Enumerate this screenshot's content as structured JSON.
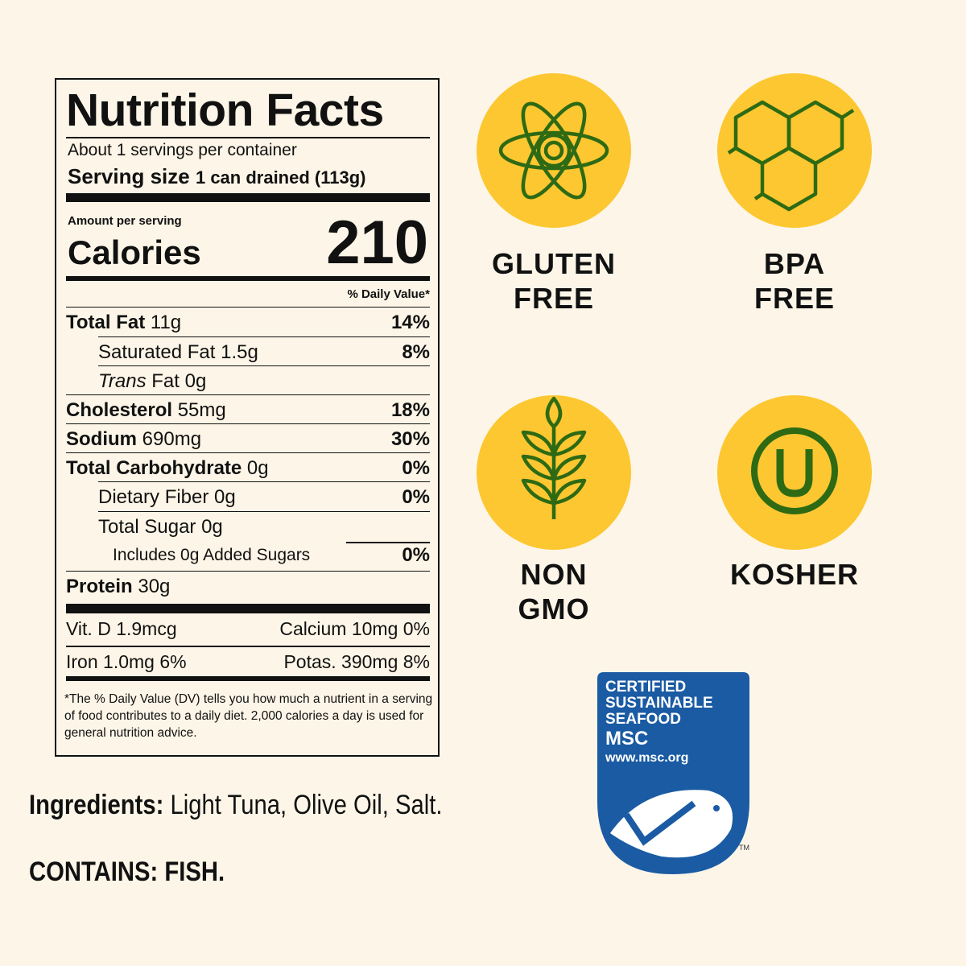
{
  "nutrition_facts": {
    "title": "Nutrition Facts",
    "servings": "About 1 servings per container",
    "serving_size_label": "Serving size",
    "serving_size": "1 can drained (113g)",
    "amount_per_serving": "Amount per serving",
    "calories_label": "Calories",
    "calories": "210",
    "daily_value_header": "% Daily Value*",
    "rows": [
      {
        "name": "Total Fat",
        "amount": "11g",
        "dv": "14%"
      },
      {
        "name": "Saturated Fat",
        "amount": "1.5g",
        "dv": "8%"
      },
      {
        "name_prefix": "Trans",
        "name": "Fat",
        "amount": "0g"
      },
      {
        "name": "Cholesterol",
        "amount": "55mg",
        "dv": "18%"
      },
      {
        "name": "Sodium",
        "amount": "690mg",
        "dv": "30%"
      },
      {
        "name": "Total Carbohydrate",
        "amount": "0g",
        "dv": "0%"
      },
      {
        "name": "Dietary Fiber",
        "amount": "0g",
        "dv": "0%"
      },
      {
        "name": "Total Sugar",
        "amount": "0g"
      },
      {
        "name": "Includes 0g Added Sugars",
        "dv": "0%"
      },
      {
        "name": "Protein",
        "amount": "30g"
      }
    ],
    "micronutrients": [
      [
        "Vit. D 1.9mcg",
        "Calcium 10mg 0%"
      ],
      [
        "Iron 1.0mg 6%",
        "Potas. 390mg 8%"
      ]
    ],
    "footnote": "*The % Daily Value (DV) tells you how much a nutrient in a serving of food contributes to a daily diet. 2,000 calories a day is used for general nutrition advice."
  },
  "ingredients": {
    "label": "Ingredients:",
    "text": "Light Tuna, Olive Oil, Salt.",
    "contains": "CONTAINS: FISH."
  },
  "badges": [
    {
      "lines": [
        "GLUTEN",
        "FREE"
      ]
    },
    {
      "lines": [
        "BPA",
        "FREE"
      ]
    },
    {
      "lines": [
        "NON",
        "GMO"
      ]
    },
    {
      "lines": [
        "KOSHER"
      ]
    }
  ],
  "msc_logo": {
    "lines": [
      "CERTIFIED",
      "SUSTAINABLE",
      "SEAFOOD"
    ],
    "name": "MSC",
    "url": "www.msc.org",
    "trademark": "TM"
  }
}
